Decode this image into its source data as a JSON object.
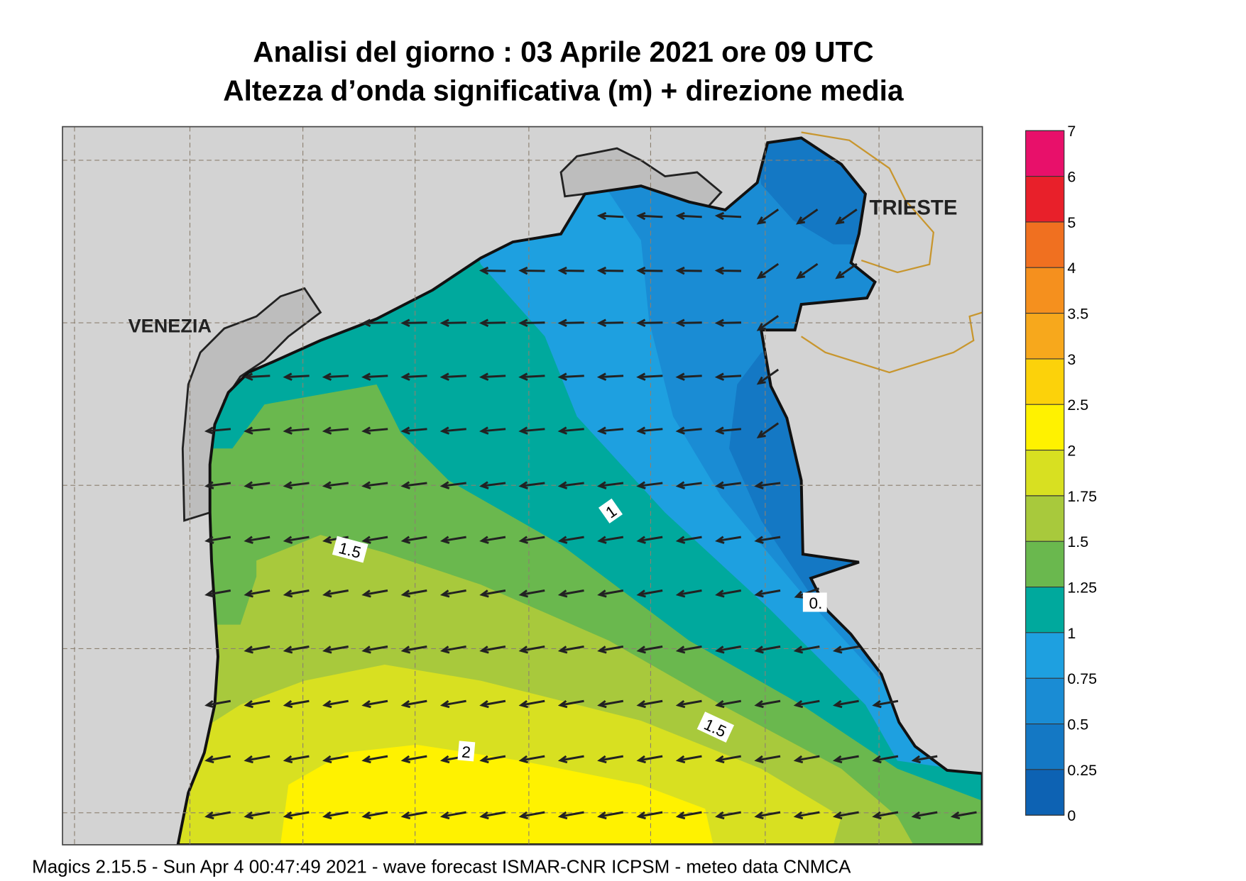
{
  "header": {
    "title": "Analisi del giorno :  03   Aprile  2021   ore 09 UTC",
    "subtitle": "Altezza d’onda significativa (m) + direzione media"
  },
  "map": {
    "places": [
      "VENEZIA",
      "TRIESTE"
    ],
    "contour_labels": [
      "1",
      "1.5",
      "1.5",
      "2",
      "0."
    ]
  },
  "colorbar": {
    "ticks": [
      0,
      0.25,
      0.5,
      0.75,
      1,
      1.25,
      1.5,
      1.75,
      2,
      2.5,
      3,
      3.5,
      4,
      5,
      6,
      7
    ],
    "colors": [
      "#0d62b3",
      "#1478c4",
      "#1a8cd4",
      "#1ea0e0",
      "#00a99d",
      "#6ab84e",
      "#a8c93c",
      "#d8e021",
      "#fff200",
      "#fcd20a",
      "#f7a81c",
      "#f5901e",
      "#f07020",
      "#e8202a",
      "#e8106a"
    ]
  },
  "footer": "Magics 2.15.5 - Sun Apr  4 00:47:49 2021 - wave forecast  ISMAR-CNR  ICPSM - meteo data   CNMCA"
}
